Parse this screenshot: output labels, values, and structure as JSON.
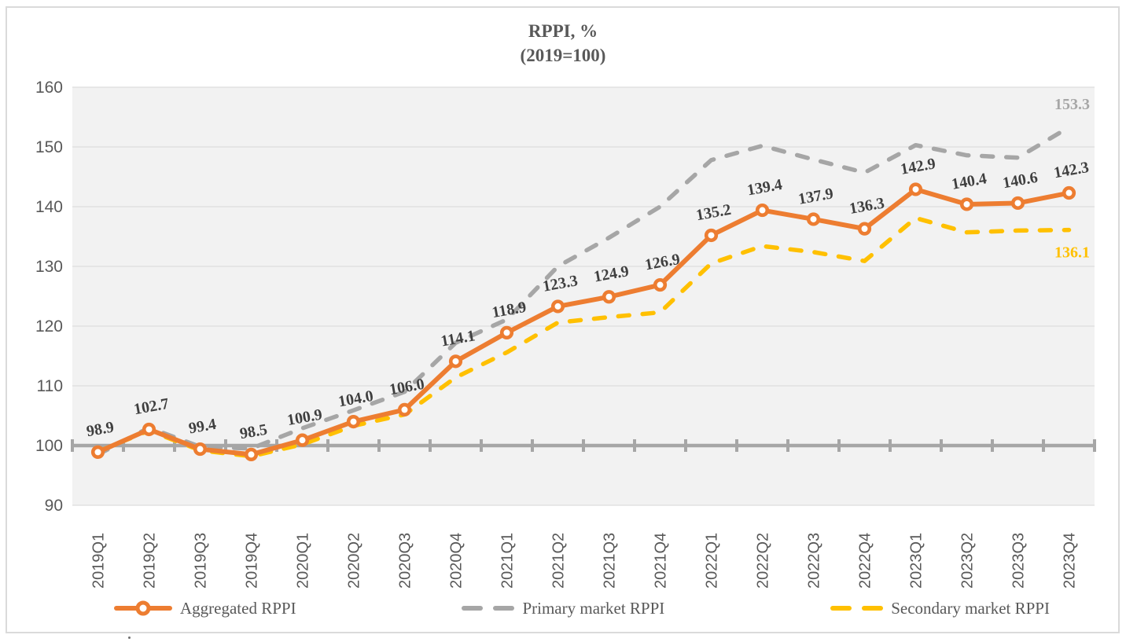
{
  "title": {
    "line1": "RPPI, %",
    "line2": "(2019=100)"
  },
  "legend": {
    "items": [
      {
        "label": "Aggregated RPPI"
      },
      {
        "label": "Primary market RPPI"
      },
      {
        "label": "Secondary market RPPI"
      }
    ]
  },
  "colors": {
    "aggregated": "#ED7D31",
    "primary": "#A6A6A6",
    "secondary": "#FFC000",
    "data_label": "#3F3F3F",
    "axis_label": "#595959",
    "title_text": "#595959",
    "baseline": "#A6A6A6",
    "gridline": "#DDDDDD",
    "plot_bg": "#F2F2F2",
    "frame_border": "#DADADA"
  },
  "chart_data": {
    "type": "line",
    "title": "RPPI, % (2019=100)",
    "categories": [
      "2019Q1",
      "2019Q2",
      "2019Q3",
      "2019Q4",
      "2020Q1",
      "2020Q2",
      "2020Q3",
      "2020Q4",
      "2021Q1",
      "2021Q2",
      "2021Q3",
      "2021Q4",
      "2022Q1",
      "2022Q2",
      "2022Q3",
      "2022Q4",
      "2023Q1",
      "2023Q2",
      "2023Q3",
      "2023Q4"
    ],
    "ylim": [
      90,
      160
    ],
    "ytick_step": 10,
    "yticks": [
      90,
      100,
      110,
      120,
      130,
      140,
      150,
      160
    ],
    "baseline_value": 100,
    "grid": true,
    "legend_position": "bottom",
    "series": [
      {
        "name": "Aggregated RPPI",
        "color": "#ED7D31",
        "style": "solid-markers",
        "point_labels": true,
        "values": [
          98.9,
          102.7,
          99.4,
          98.5,
          100.9,
          104.0,
          106.0,
          114.1,
          118.9,
          123.3,
          124.9,
          126.9,
          135.2,
          139.4,
          137.9,
          136.3,
          142.9,
          140.4,
          140.6,
          142.3
        ]
      },
      {
        "name": "Primary market RPPI",
        "color": "#A6A6A6",
        "style": "dashed",
        "point_labels": false,
        "end_label": "153.3",
        "end_label_side": "above",
        "values": [
          98.5,
          103.0,
          99.8,
          99.5,
          102.9,
          105.9,
          109.0,
          117.2,
          121.1,
          130.0,
          134.8,
          140.0,
          147.8,
          150.2,
          147.9,
          145.7,
          150.3,
          148.6,
          148.2,
          153.3
        ]
      },
      {
        "name": "Secondary market RPPI",
        "color": "#FFC000",
        "style": "dashed",
        "point_labels": false,
        "end_label": "136.1",
        "end_label_side": "below",
        "values": [
          99.0,
          102.5,
          99.2,
          98.2,
          100.2,
          103.3,
          105.2,
          111.4,
          115.6,
          120.6,
          121.5,
          122.3,
          130.5,
          133.4,
          132.4,
          130.9,
          138.1,
          135.7,
          136.0,
          136.1
        ]
      }
    ]
  }
}
